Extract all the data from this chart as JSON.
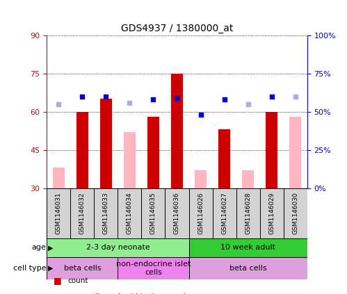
{
  "title": "GDS4937 / 1380000_at",
  "samples": [
    "GSM1146031",
    "GSM1146032",
    "GSM1146033",
    "GSM1146034",
    "GSM1146035",
    "GSM1146036",
    "GSM1146026",
    "GSM1146027",
    "GSM1146028",
    "GSM1146029",
    "GSM1146030"
  ],
  "count_values": [
    null,
    60,
    65,
    null,
    58,
    75,
    null,
    53,
    null,
    60,
    null
  ],
  "count_absent": [
    38,
    null,
    null,
    52,
    null,
    null,
    37,
    null,
    37,
    null,
    58
  ],
  "rank_values": [
    null,
    60,
    60,
    null,
    58,
    59,
    48,
    58,
    null,
    60,
    null
  ],
  "rank_absent": [
    55,
    null,
    null,
    56,
    null,
    null,
    null,
    null,
    55,
    null,
    60
  ],
  "ylim_left": [
    30,
    90
  ],
  "ylim_right": [
    0,
    100
  ],
  "yticks_left": [
    30,
    45,
    60,
    75,
    90
  ],
  "yticks_right": [
    0,
    25,
    50,
    75,
    100
  ],
  "ytick_labels_right": [
    "0%",
    "25%",
    "50%",
    "75%",
    "100%"
  ],
  "age_groups": [
    {
      "label": "2-3 day neonate",
      "start": 0,
      "end": 6,
      "color": "#90EE90"
    },
    {
      "label": "10 week adult",
      "start": 6,
      "end": 11,
      "color": "#33CC33"
    }
  ],
  "cell_type_groups": [
    {
      "label": "beta cells",
      "start": 0,
      "end": 3,
      "color": "#DDA0DD"
    },
    {
      "label": "non-endocrine islet\ncells",
      "start": 3,
      "end": 6,
      "color": "#EE82EE"
    },
    {
      "label": "beta cells",
      "start": 6,
      "end": 11,
      "color": "#DDA0DD"
    }
  ],
  "color_count": "#CC0000",
  "color_rank": "#0000CC",
  "color_count_absent": "#FFB6C1",
  "color_rank_absent": "#AAAAEE",
  "bar_width": 0.5,
  "sample_bg_color": "#D3D3D3",
  "plot_bg": "#FFFFFF"
}
